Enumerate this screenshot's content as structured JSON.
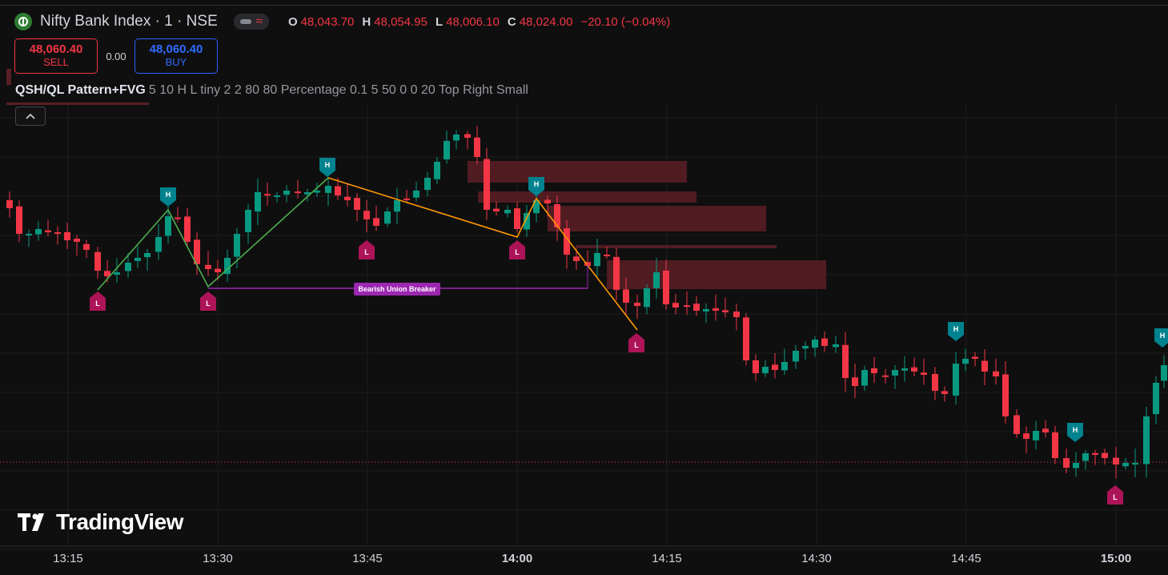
{
  "header": {
    "symbol": "Nifty Bank Index · 1 · NSE",
    "ohlc": [
      {
        "k": "O",
        "v": "48,043.70"
      },
      {
        "k": "H",
        "v": "48,054.95"
      },
      {
        "k": "L",
        "v": "48,006.10"
      },
      {
        "k": "C",
        "v": "48,024.00"
      },
      {
        "k": "",
        "v": "−20.10 (−0.04%)"
      }
    ]
  },
  "trade": {
    "sell_price": "48,060.40",
    "sell_label": "SELL",
    "spread": "0.00",
    "buy_price": "48,060.40",
    "buy_label": "BUY"
  },
  "indicator": {
    "name": "QSH/QL Pattern+FVG",
    "args": "5 10 H L tiny 2 2 80 80 Percentage 0.1 5 50 0 0 20 Top Right Small"
  },
  "annotations": {
    "breaker_label": "Bearish Union Breaker",
    "high_marker": "H",
    "low_marker": "L"
  },
  "branding": {
    "logo_text": "TradingView"
  },
  "chart_data": {
    "type": "candlestick",
    "x_ticks": [
      "13:15",
      "13:30",
      "13:45",
      "14:00",
      "14:15",
      "14:30",
      "14:45",
      "15:00"
    ],
    "bold_ticks": [
      "14:00",
      "15:00"
    ],
    "colors": {
      "up": "#089981",
      "down": "#f23645",
      "background": "#0f0f0f",
      "fvg": "#5c1f26",
      "swing_green": "#4caf50",
      "swing_orange": "#ff9800",
      "breaker": "#9c27b0",
      "h_marker": "#00838f",
      "l_marker": "#ad1457"
    },
    "grid": true,
    "last_price_line": true
  }
}
